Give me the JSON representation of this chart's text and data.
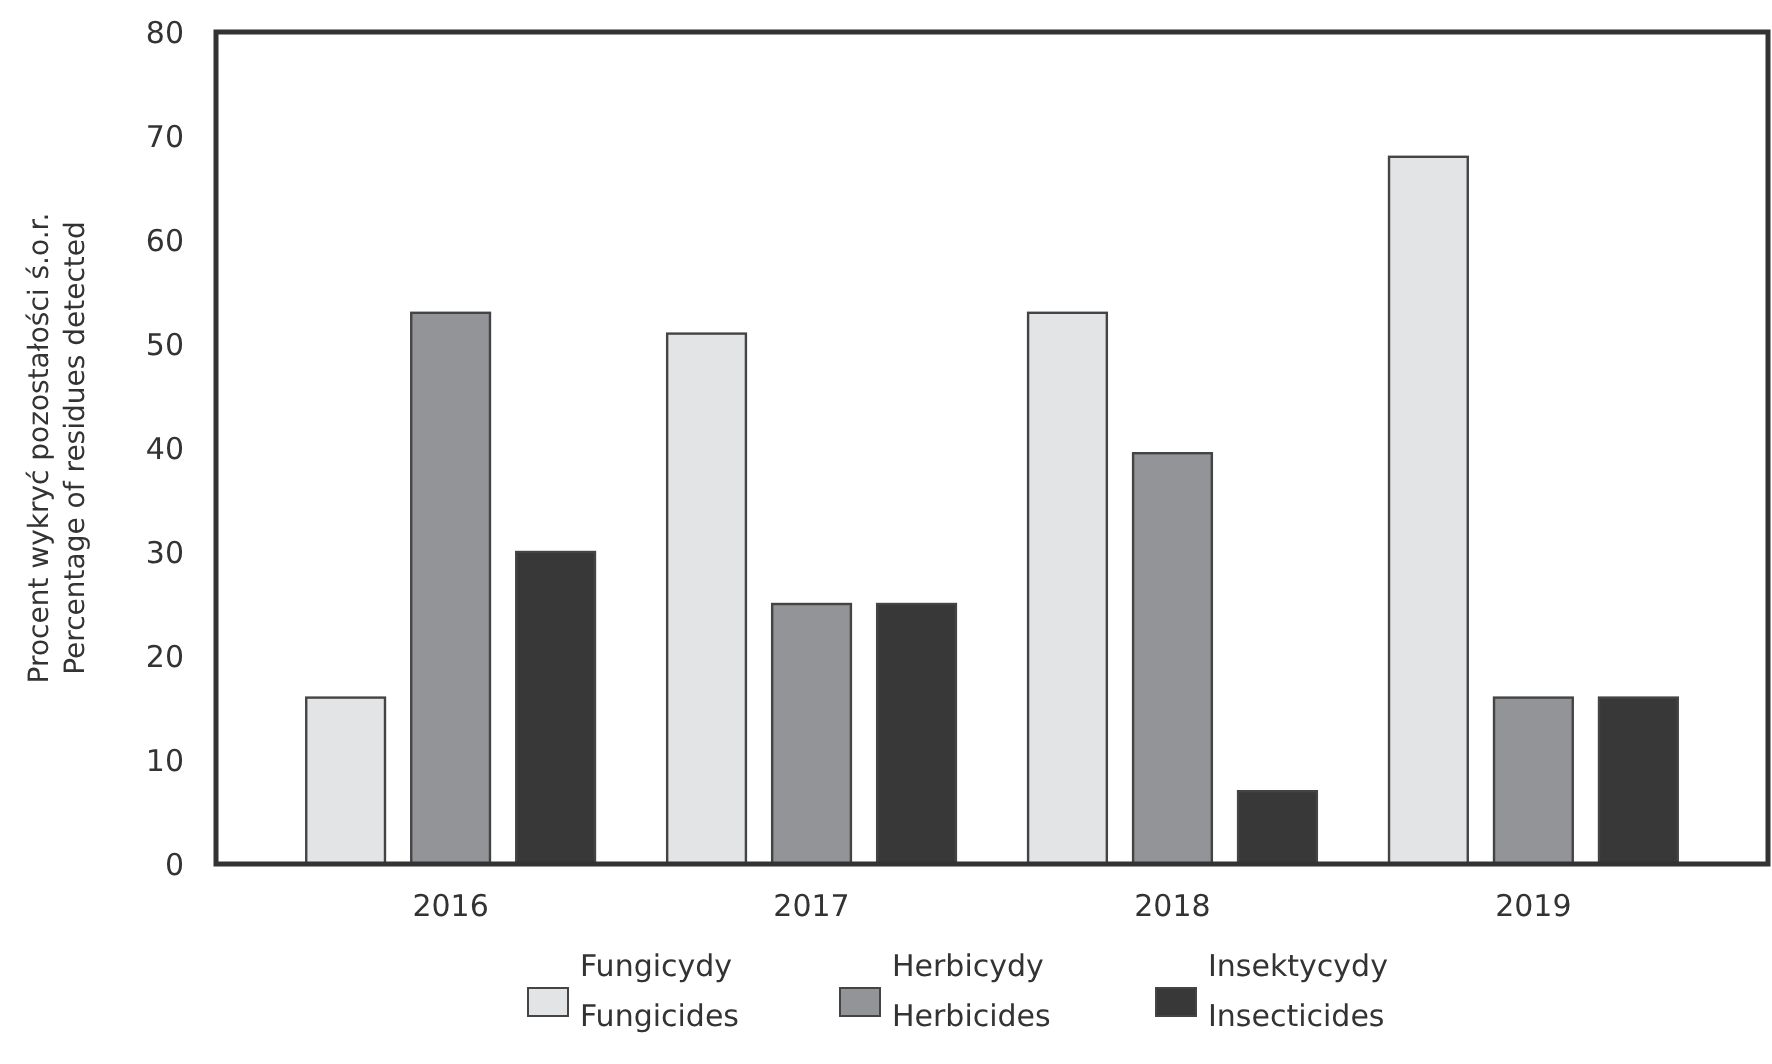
{
  "chart_data": {
    "type": "bar",
    "ylabel": "Procent wykryć pozostałości ś.o.r.\nPercentage of residues detected",
    "categories": [
      "2016",
      "2017",
      "2018",
      "2019"
    ],
    "series": [
      {
        "name": "Fungicydy\nFungicides",
        "color": "#e3e4e6",
        "values": [
          16,
          51,
          53,
          68
        ]
      },
      {
        "name": "Herbicydy\nHerbicides",
        "color": "#939497",
        "values": [
          53,
          25,
          39.5,
          16
        ]
      },
      {
        "name": "Insektycydy\nInsecticides",
        "color": "#383838",
        "values": [
          30,
          25,
          7,
          16
        ]
      }
    ],
    "ylim": [
      0,
      80
    ],
    "yticks": [
      0,
      10,
      20,
      30,
      40,
      50,
      60,
      70,
      80
    ],
    "grid": false,
    "legend": "bottom"
  }
}
